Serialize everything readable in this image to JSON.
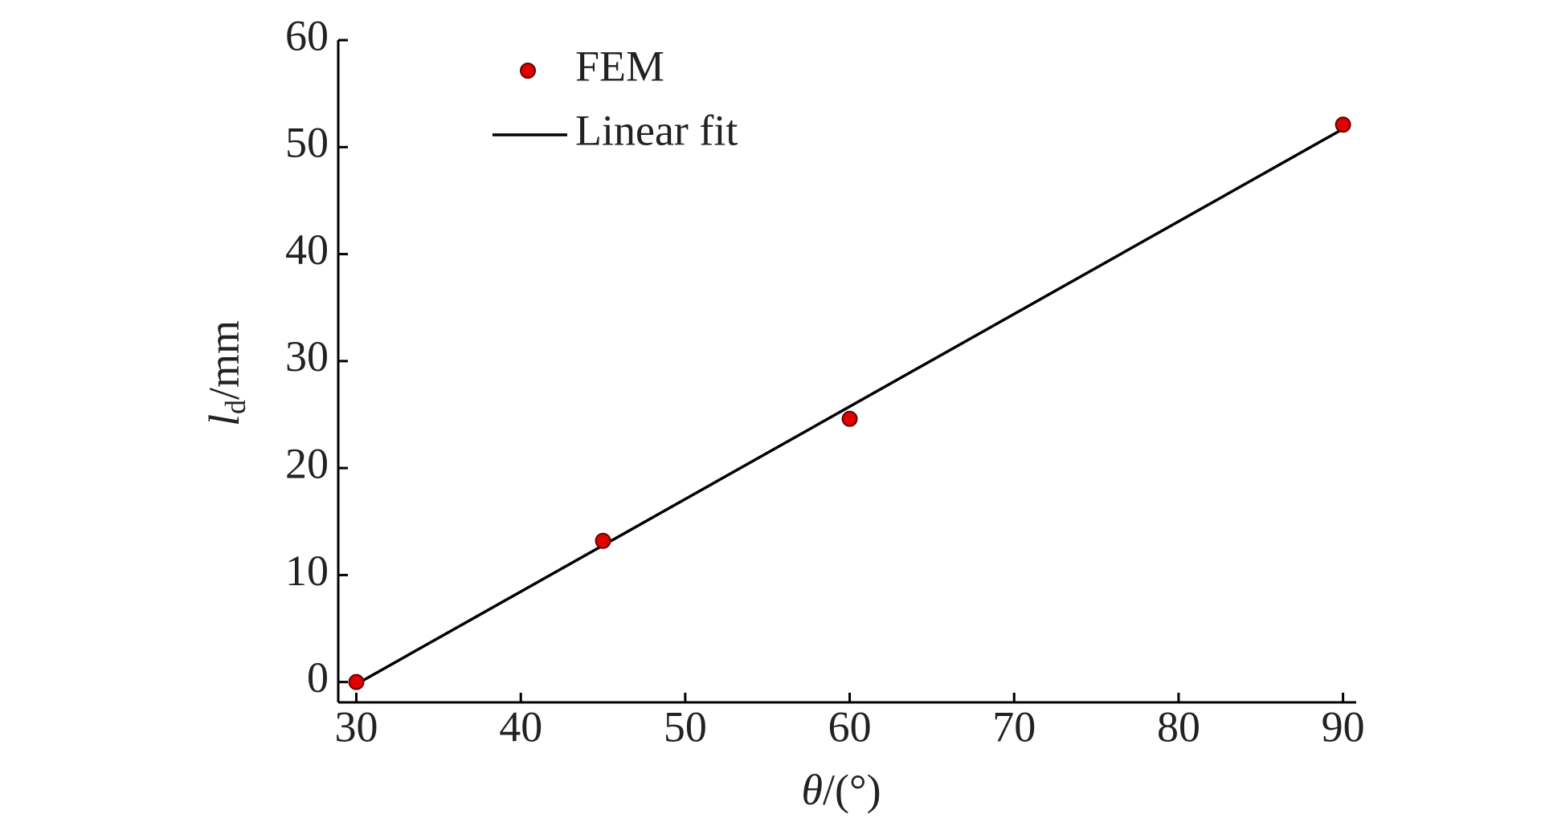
{
  "chart_data": {
    "type": "scatter",
    "xlabel": {
      "symbol": "θ",
      "unit": "/(°)"
    },
    "ylabel": {
      "symbol": "l",
      "subscript": "d",
      "unit": "/mm"
    },
    "series": [
      {
        "name": "FEM",
        "type": "scatter",
        "color": "#e00000",
        "x": [
          30,
          45,
          60,
          90
        ],
        "values": [
          0,
          13.2,
          24.6,
          52.1
        ]
      },
      {
        "name": "Linear fit",
        "type": "line",
        "color": "#000000",
        "x": [
          30,
          90
        ],
        "values": [
          -0.2,
          51.7
        ]
      }
    ],
    "xlim": [
      28.9,
      90.8
    ],
    "ylim": [
      -1.9,
      60
    ],
    "xticks": [
      30,
      40,
      50,
      60,
      70,
      80,
      90
    ],
    "yticks": [
      0,
      10,
      20,
      30,
      40,
      50,
      60
    ],
    "grid": false,
    "legend": "top-left"
  }
}
